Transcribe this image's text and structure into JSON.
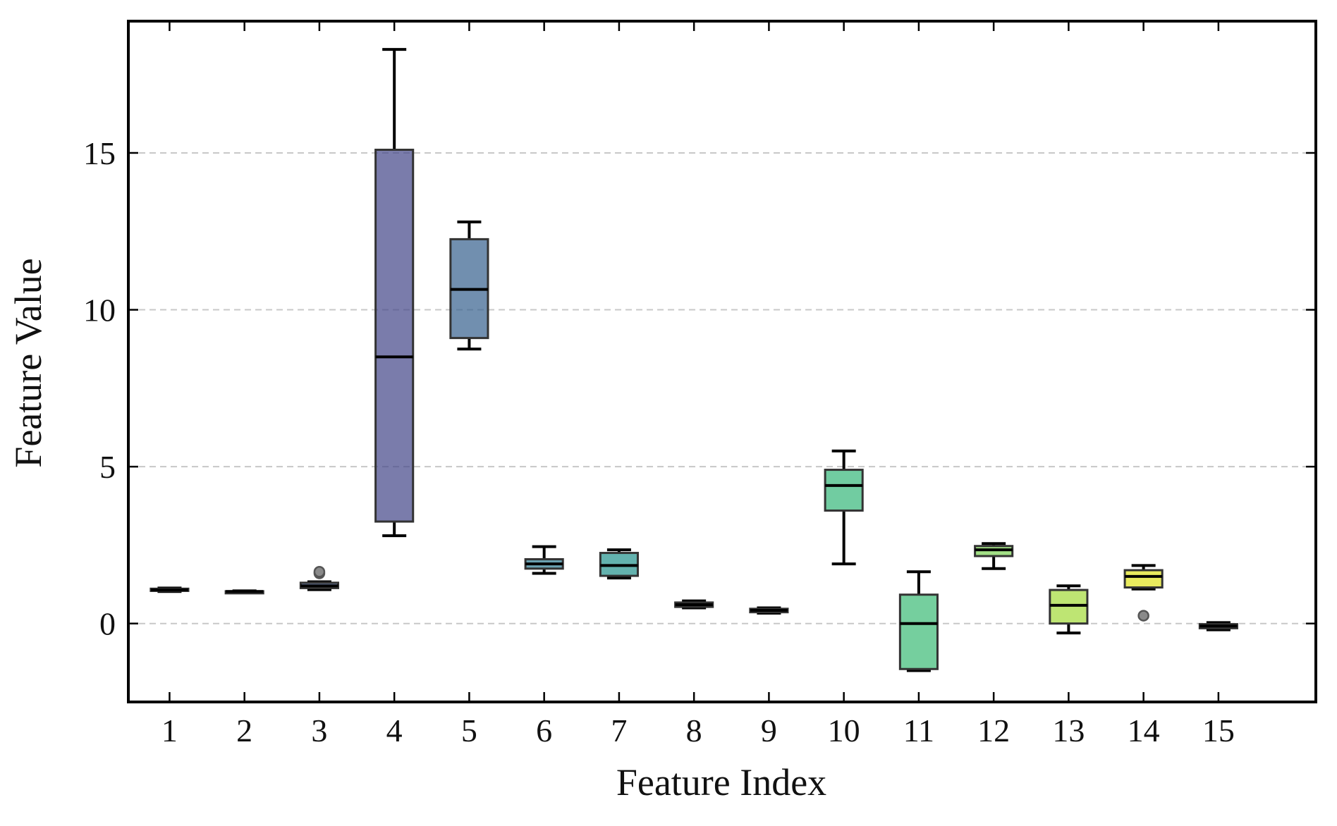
{
  "chart_data": {
    "type": "box",
    "title": "",
    "xlabel": "Feature Index",
    "ylabel": "Feature Value",
    "ylim": [
      -2.5,
      19.2
    ],
    "yticks": [
      0,
      5,
      10,
      15
    ],
    "grid": "horizontal dashed",
    "categories": [
      "1",
      "2",
      "3",
      "4",
      "5",
      "6",
      "7",
      "8",
      "9",
      "10",
      "11",
      "12",
      "13",
      "14",
      "15"
    ],
    "boxes": [
      {
        "category": "1",
        "whisker_low": 1.02,
        "q1": 1.04,
        "median": 1.07,
        "q3": 1.11,
        "whisker_high": 1.13,
        "outliers": [],
        "color": "#3e4a89"
      },
      {
        "category": "2",
        "whisker_low": 1.0,
        "q1": 1.01,
        "median": 1.02,
        "q3": 1.03,
        "whisker_high": 1.04,
        "outliers": [],
        "color": "#423f85"
      },
      {
        "category": "3",
        "whisker_low": 1.08,
        "q1": 1.13,
        "median": 1.2,
        "q3": 1.3,
        "whisker_high": 1.33,
        "outliers": [
          1.6,
          1.65
        ],
        "color": "#3b528b"
      },
      {
        "category": "4",
        "whisker_low": 2.8,
        "q1": 3.25,
        "median": 8.5,
        "q3": 15.1,
        "whisker_high": 18.3,
        "outliers": [],
        "color": "#414487"
      },
      {
        "category": "5",
        "whisker_low": 8.75,
        "q1": 9.1,
        "median": 10.65,
        "q3": 12.25,
        "whisker_high": 12.8,
        "outliers": [],
        "color": "#355f8d"
      },
      {
        "category": "6",
        "whisker_low": 1.6,
        "q1": 1.75,
        "median": 1.9,
        "q3": 2.05,
        "whisker_high": 2.45,
        "outliers": [],
        "color": "#2a788e"
      },
      {
        "category": "7",
        "whisker_low": 1.45,
        "q1": 1.52,
        "median": 1.85,
        "q3": 2.25,
        "whisker_high": 2.35,
        "outliers": [],
        "color": "#21918c"
      },
      {
        "category": "8",
        "whisker_low": 0.5,
        "q1": 0.53,
        "median": 0.6,
        "q3": 0.67,
        "whisker_high": 0.72,
        "outliers": [],
        "color": "#1f988b"
      },
      {
        "category": "9",
        "whisker_low": 0.33,
        "q1": 0.36,
        "median": 0.42,
        "q3": 0.47,
        "whisker_high": 0.5,
        "outliers": [],
        "color": "#22a884"
      },
      {
        "category": "10",
        "whisker_low": 1.9,
        "q1": 3.6,
        "median": 4.4,
        "q3": 4.9,
        "whisker_high": 5.5,
        "outliers": [],
        "color": "#35b779"
      },
      {
        "category": "11",
        "whisker_low": -1.5,
        "q1": -1.45,
        "median": 0.0,
        "q3": 0.92,
        "whisker_high": 1.65,
        "outliers": [],
        "color": "#3bbb75"
      },
      {
        "category": "12",
        "whisker_low": 1.75,
        "q1": 2.15,
        "median": 2.35,
        "q3": 2.47,
        "whisker_high": 2.55,
        "outliers": [],
        "color": "#7ad151"
      },
      {
        "category": "13",
        "whisker_low": -0.3,
        "q1": 0.0,
        "median": 0.58,
        "q3": 1.07,
        "whisker_high": 1.2,
        "outliers": [],
        "color": "#a2da37"
      },
      {
        "category": "14",
        "whisker_low": 1.1,
        "q1": 1.15,
        "median": 1.5,
        "q3": 1.7,
        "whisker_high": 1.85,
        "outliers": [
          0.25
        ],
        "color": "#e0e31a"
      },
      {
        "category": "15",
        "whisker_low": -0.2,
        "q1": -0.15,
        "median": -0.08,
        "q3": -0.02,
        "whisker_high": 0.03,
        "outliers": [],
        "color": "#5a6bb0"
      }
    ]
  }
}
